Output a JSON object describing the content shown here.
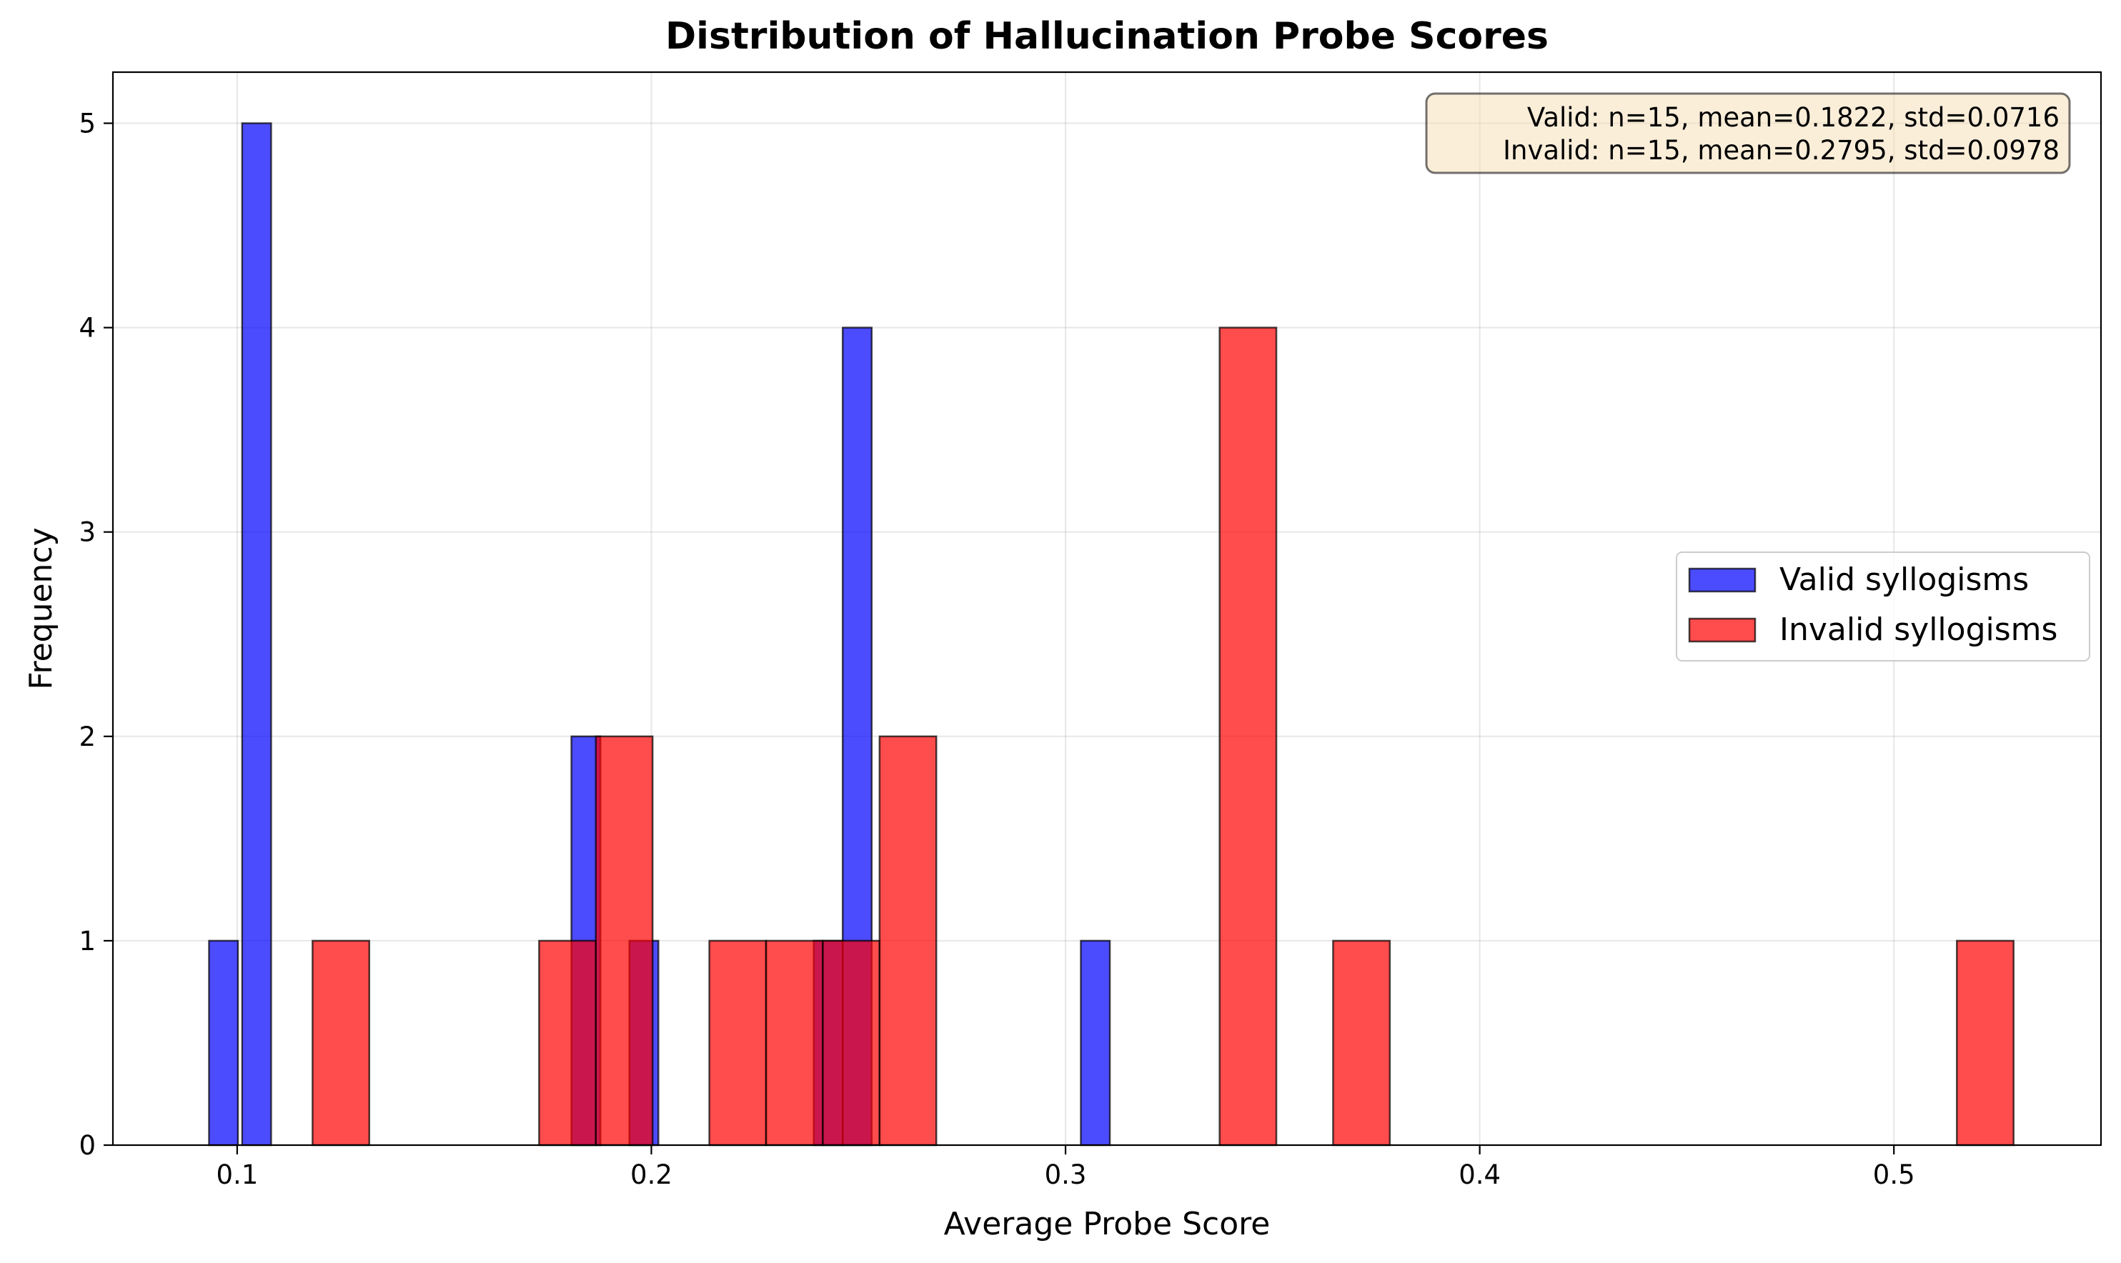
{
  "chart_data": {
    "type": "histogram",
    "title": "Distribution of Hallucination Probe Scores",
    "xlabel": "Average Probe Score",
    "ylabel": "Frequency",
    "xlim": [
      0.07,
      0.55
    ],
    "ylim": [
      0,
      5.25
    ],
    "xticks": [
      0.1,
      0.2,
      0.3,
      0.4,
      0.5
    ],
    "xtick_labels": [
      "0.1",
      "0.2",
      "0.3",
      "0.4",
      "0.5"
    ],
    "yticks": [
      0,
      1,
      2,
      3,
      4,
      5
    ],
    "ytick_labels": [
      "0",
      "1",
      "2",
      "3",
      "4",
      "5"
    ],
    "grid": true,
    "legend_position": "center-right",
    "stats_box": {
      "line1": "Valid: n=15, mean=0.1822, std=0.0716",
      "line2": "Invalid: n=15, mean=0.2795, std=0.0978",
      "position": "top-right"
    },
    "series": [
      {
        "name": "Valid syllogisms",
        "color": "#0000ff",
        "bin_width": 0.007,
        "bins": [
          {
            "x0": 0.0932,
            "x1": 0.1002,
            "count": 1
          },
          {
            "x0": 0.1012,
            "x1": 0.1082,
            "count": 5
          },
          {
            "x0": 0.1807,
            "x1": 0.1877,
            "count": 2
          },
          {
            "x0": 0.1947,
            "x1": 0.2017,
            "count": 1
          },
          {
            "x0": 0.2392,
            "x1": 0.2462,
            "count": 1
          },
          {
            "x0": 0.2462,
            "x1": 0.2532,
            "count": 4
          },
          {
            "x0": 0.3037,
            "x1": 0.3107,
            "count": 1
          }
        ]
      },
      {
        "name": "Invalid syllogisms",
        "color": "#ff0000",
        "bin_width": 0.0137,
        "bins": [
          {
            "x0": 0.1182,
            "x1": 0.1319,
            "count": 1
          },
          {
            "x0": 0.1729,
            "x1": 0.1866,
            "count": 1
          },
          {
            "x0": 0.1866,
            "x1": 0.2003,
            "count": 2
          },
          {
            "x0": 0.214,
            "x1": 0.2277,
            "count": 1
          },
          {
            "x0": 0.2277,
            "x1": 0.2414,
            "count": 1
          },
          {
            "x0": 0.2414,
            "x1": 0.2551,
            "count": 1
          },
          {
            "x0": 0.2551,
            "x1": 0.2688,
            "count": 2
          },
          {
            "x0": 0.3372,
            "x1": 0.3509,
            "count": 4
          },
          {
            "x0": 0.3646,
            "x1": 0.3783,
            "count": 1
          },
          {
            "x0": 0.5152,
            "x1": 0.5289,
            "count": 1
          }
        ]
      }
    ]
  }
}
